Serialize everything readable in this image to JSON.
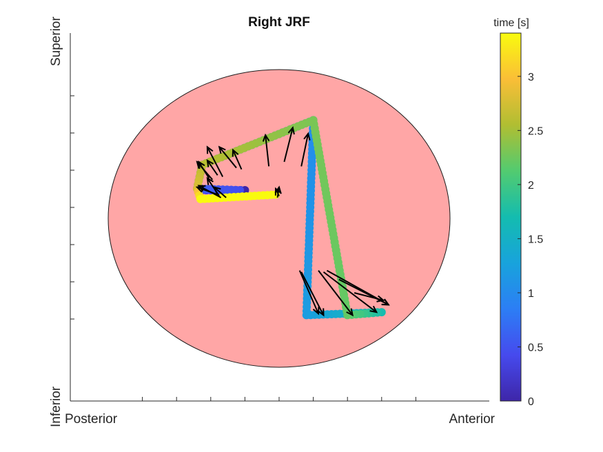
{
  "chart_data": {
    "type": "scatter",
    "title": "Right JRF",
    "xlabel_left": "Posterior",
    "xlabel_right": "Anterior",
    "ylabel_top": "Superior",
    "ylabel_bottom": "Inferior",
    "colorbar": {
      "label": "time [s]",
      "range": [
        0,
        3.4
      ],
      "ticks": [
        "0",
        "0.5",
        "1",
        "1.5",
        "2",
        "2.5",
        "3"
      ],
      "tick_values": [
        0,
        0.5,
        1,
        1.5,
        2,
        2.5,
        3
      ],
      "colormap": "parula"
    },
    "background_circle_color": "#ffa6a6",
    "xlim": [
      -1,
      1
    ],
    "ylim": [
      -1,
      1
    ],
    "x_ticks": [
      -0.8,
      -0.6,
      -0.4,
      -0.2,
      0,
      0.2,
      0.4,
      0.6,
      0.8
    ],
    "y_ticks": [
      -0.75,
      -0.5,
      -0.25,
      0,
      0.25,
      0.5,
      0.75
    ],
    "series": [
      {
        "points": [
          {
            "x": -0.2,
            "y": 0.19,
            "t": 0.0
          },
          {
            "x": -0.45,
            "y": 0.19,
            "t": 0.4
          },
          {
            "x": -0.23,
            "y": 0.19,
            "t": 0.45
          },
          {
            "x": -0.48,
            "y": 0.2,
            "t": 0.6
          },
          {
            "x": -0.45,
            "y": 0.36,
            "t": 0.85
          },
          {
            "x": 0.2,
            "y": 0.66,
            "t": 1.0
          },
          {
            "x": 0.16,
            "y": -0.65,
            "t": 1.2
          },
          {
            "x": 0.6,
            "y": -0.63,
            "t": 1.7
          },
          {
            "x": 0.4,
            "y": -0.65,
            "t": 2.2
          },
          {
            "x": 0.2,
            "y": 0.66,
            "t": 2.3
          },
          {
            "x": -0.45,
            "y": 0.36,
            "t": 2.6
          },
          {
            "x": -0.48,
            "y": 0.2,
            "t": 2.8
          },
          {
            "x": -0.46,
            "y": 0.13,
            "t": 3.4
          },
          {
            "x": -0.02,
            "y": 0.16,
            "t": 3.4
          }
        ]
      }
    ],
    "arrows": [
      {
        "x": -0.35,
        "y": 0.15,
        "u": -0.07,
        "v": 0.12
      },
      {
        "x": -0.34,
        "y": 0.14,
        "u": -0.13,
        "v": 0.08
      },
      {
        "x": -0.36,
        "y": 0.16,
        "u": -0.12,
        "v": 0.05
      },
      {
        "x": -0.31,
        "y": 0.14,
        "u": -0.07,
        "v": 0.07
      },
      {
        "x": -0.01,
        "y": 0.14,
        "u": 0.01,
        "v": 0.07
      },
      {
        "x": 0.0,
        "y": 0.15,
        "u": -0.02,
        "v": 0.05
      },
      {
        "x": -0.41,
        "y": 0.27,
        "u": -0.06,
        "v": 0.11
      },
      {
        "x": -0.39,
        "y": 0.26,
        "u": -0.09,
        "v": 0.12
      },
      {
        "x": -0.36,
        "y": 0.29,
        "u": -0.06,
        "v": 0.1
      },
      {
        "x": -0.33,
        "y": 0.28,
        "u": -0.09,
        "v": 0.2
      },
      {
        "x": -0.25,
        "y": 0.34,
        "u": -0.1,
        "v": 0.14
      },
      {
        "x": -0.22,
        "y": 0.33,
        "u": -0.05,
        "v": 0.13
      },
      {
        "x": -0.06,
        "y": 0.35,
        "u": -0.02,
        "v": 0.21
      },
      {
        "x": 0.03,
        "y": 0.38,
        "u": 0.05,
        "v": 0.23
      },
      {
        "x": 0.13,
        "y": 0.35,
        "u": 0.04,
        "v": 0.22
      },
      {
        "x": 0.12,
        "y": -0.35,
        "u": 0.11,
        "v": -0.29
      },
      {
        "x": 0.13,
        "y": -0.36,
        "u": 0.13,
        "v": -0.29
      },
      {
        "x": 0.23,
        "y": -0.35,
        "u": 0.2,
        "v": -0.3
      },
      {
        "x": 0.26,
        "y": -0.36,
        "u": 0.31,
        "v": -0.27
      },
      {
        "x": 0.28,
        "y": -0.35,
        "u": 0.36,
        "v": -0.23
      },
      {
        "x": 0.35,
        "y": -0.41,
        "u": 0.29,
        "v": -0.17
      },
      {
        "x": 0.44,
        "y": -0.5,
        "u": 0.17,
        "v": -0.05
      }
    ]
  }
}
